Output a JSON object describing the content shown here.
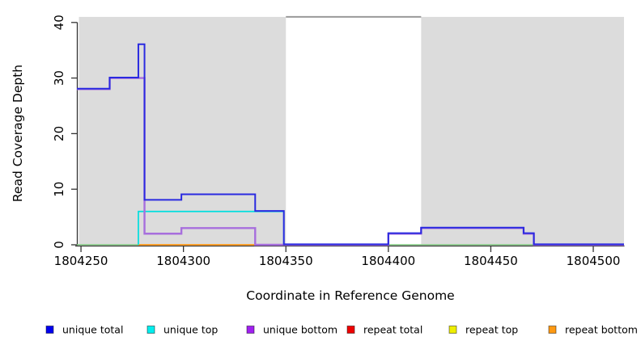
{
  "chart_data": {
    "type": "line",
    "subtype": "step-coverage-plot",
    "title": "",
    "xlabel": "Coordinate in Reference Genome",
    "ylabel": "Read Coverage Depth",
    "xlim": [
      1804248,
      1804515
    ],
    "ylim": [
      0,
      41
    ],
    "grid": false,
    "x_ticks": [
      1804250,
      1804300,
      1804350,
      1804400,
      1804450,
      1804500
    ],
    "y_ticks": [
      0,
      10,
      20,
      30,
      40
    ],
    "shaded_regions": [
      {
        "name": "left-target-region",
        "x0": 1804249,
        "x1": 1804350,
        "color": "#dcdcdc"
      },
      {
        "name": "right-target-region",
        "x0": 1804416,
        "x1": 1804515,
        "color": "#dcdcdc"
      }
    ],
    "gap_top_line": {
      "x0": 1804350,
      "x1": 1804416,
      "y": 41,
      "color": "#999999"
    },
    "series": [
      {
        "name": "zero-baseline",
        "color": "#7fc87f",
        "width": 1.5,
        "dy": 0,
        "steps": [
          [
            1804248,
            0
          ]
        ],
        "xend": 1804515,
        "rise": false,
        "drop": false
      },
      {
        "name": "repeat bottom",
        "color": "#ff9e2c",
        "width": 2,
        "dy": 0,
        "steps": [
          [
            1804278,
            0
          ]
        ],
        "xend": 1804335,
        "rise": false,
        "drop": false
      },
      {
        "name": "repeat total",
        "color": "#d47383",
        "width": 1.6,
        "dy": 0,
        "steps": [
          [
            1804335,
            0
          ]
        ],
        "xend": 1804349,
        "rise": false,
        "drop": false
      },
      {
        "name": "unique top",
        "color": "#00dede",
        "width": 1.7,
        "dy": 0,
        "steps": [
          [
            1804278,
            6
          ]
        ],
        "xend": 1804349,
        "rise": true,
        "drop": true
      },
      {
        "name": "unique bottom",
        "color": "#a76edd",
        "width": 2.4,
        "dy": 0,
        "steps": [
          [
            1804248,
            28
          ],
          [
            1804264,
            30
          ],
          [
            1804281,
            2
          ],
          [
            1804299,
            3
          ],
          [
            1804335,
            0
          ],
          [
            1804400,
            2
          ],
          [
            1804416,
            3
          ],
          [
            1804466,
            2
          ],
          [
            1804471,
            0
          ]
        ],
        "xend": 1804515,
        "rise": false,
        "drop": false
      },
      {
        "name": "unique total",
        "color": "#2a2ae0",
        "width": 2,
        "dy": -0.6,
        "steps": [
          [
            1804248,
            28
          ],
          [
            1804264,
            30
          ],
          [
            1804278,
            36
          ],
          [
            1804281,
            8
          ],
          [
            1804299,
            9
          ],
          [
            1804335,
            6
          ],
          [
            1804349,
            0
          ],
          [
            1804400,
            2
          ],
          [
            1804416,
            3
          ],
          [
            1804466,
            2
          ],
          [
            1804471,
            0
          ]
        ],
        "xend": 1804515,
        "rise": false,
        "drop": false
      }
    ],
    "legend": {
      "position": "bottom",
      "items": [
        {
          "label": "unique total",
          "color": "#0000ee"
        },
        {
          "label": "unique top",
          "color": "#00eeee"
        },
        {
          "label": "unique bottom",
          "color": "#a020f0"
        },
        {
          "label": "repeat total",
          "color": "#ee0000"
        },
        {
          "label": "repeat top",
          "color": "#eeee00"
        },
        {
          "label": "repeat bottom",
          "color": "#ff9912"
        }
      ]
    },
    "axis_color": "#333333",
    "plot_bg": "#ffffff"
  }
}
